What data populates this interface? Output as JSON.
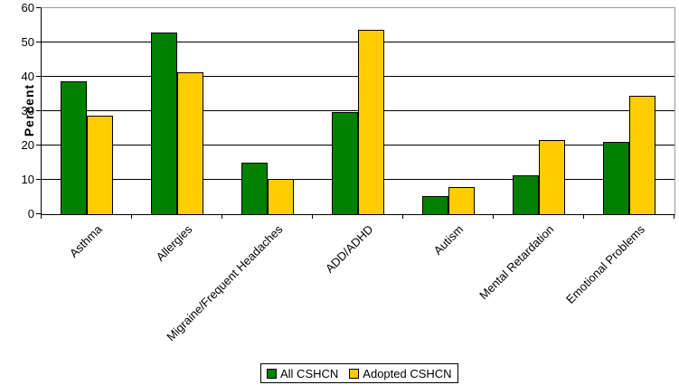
{
  "chart_data": {
    "type": "bar",
    "title": "",
    "ylabel": "Percent",
    "xlabel": "",
    "ylim": [
      0,
      60
    ],
    "ytick_step": 10,
    "grid": "horizontal",
    "legend_position": "bottom-center",
    "categories": [
      "Asthma",
      "Allergies",
      "Migraine/Frequent Headaches",
      "ADD/ADHD",
      "Autism",
      "Mental Retardation",
      "Emotional Problems"
    ],
    "series": [
      {
        "name": "All CSHCN",
        "color": "#008000",
        "values": [
          38.8,
          53.0,
          15.1,
          29.8,
          5.2,
          11.4,
          21.1
        ]
      },
      {
        "name": "Adopted CSHCN",
        "color": "#FFCC00",
        "values": [
          28.7,
          41.4,
          10.3,
          53.7,
          7.9,
          21.6,
          34.5
        ]
      }
    ]
  },
  "colors": {
    "gridline": "#000000",
    "plot_border_gray": "#9A9A9A",
    "bar_border": "#000000",
    "plot_background": "#FEFFFE"
  }
}
